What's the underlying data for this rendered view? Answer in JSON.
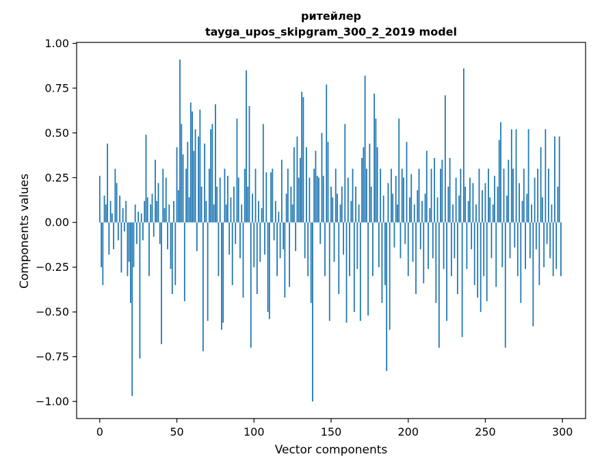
{
  "figure": {
    "title_line1": "ритейлер",
    "title_line2": "tayga_upos_skipgram_300_2_2019 model"
  },
  "chart_data": {
    "type": "bar",
    "title": "ритейлер",
    "subtitle": "tayga_upos_skipgram_300_2_2019 model",
    "xlabel": "Vector components",
    "ylabel": "Components values",
    "bar_color": "#1f77b4",
    "axis_color": "#000000",
    "xlim": [
      -15,
      315
    ],
    "ylim": [
      -1.0955,
      1.0055
    ],
    "grid": false,
    "legend": "none",
    "x_ticks": [
      {
        "value": 0,
        "label": "0"
      },
      {
        "value": 50,
        "label": "50"
      },
      {
        "value": 100,
        "label": "100"
      },
      {
        "value": 150,
        "label": "150"
      },
      {
        "value": 200,
        "label": "200"
      },
      {
        "value": 250,
        "label": "250"
      },
      {
        "value": 300,
        "label": "300"
      }
    ],
    "y_ticks": [
      {
        "value": 1.0,
        "label": "1.00"
      },
      {
        "value": 0.75,
        "label": "0.75"
      },
      {
        "value": 0.5,
        "label": "0.50"
      },
      {
        "value": 0.25,
        "label": "0.25"
      },
      {
        "value": 0.0,
        "label": "0.00"
      },
      {
        "value": -0.25,
        "label": "−0.25"
      },
      {
        "value": -0.5,
        "label": "−0.50"
      },
      {
        "value": -0.75,
        "label": "−0.75"
      },
      {
        "value": -1.0,
        "label": "−1.00"
      }
    ],
    "x_start": 0,
    "values": [
      0.26,
      -0.25,
      -0.35,
      0.15,
      0.1,
      0.44,
      -0.18,
      0.12,
      0.05,
      -0.15,
      0.3,
      0.22,
      -0.1,
      0.15,
      -0.28,
      0.08,
      -0.05,
      0.12,
      -0.3,
      -0.22,
      -0.45,
      -0.97,
      -0.25,
      0.1,
      -0.12,
      0.06,
      -0.76,
      0.05,
      -0.1,
      0.12,
      0.49,
      0.14,
      -0.3,
      0.1,
      0.16,
      -0.08,
      0.35,
      0.12,
      0.22,
      -0.12,
      -0.68,
      0.3,
      0.08,
      0.25,
      -0.15,
      0.1,
      -0.26,
      -0.4,
      0.12,
      -0.35,
      0.42,
      0.18,
      0.91,
      0.55,
      0.38,
      -0.44,
      0.3,
      0.45,
      0.14,
      0.67,
      0.62,
      0.4,
      0.52,
      -0.16,
      0.48,
      0.63,
      0.2,
      -0.72,
      0.44,
      0.12,
      -0.55,
      0.3,
      0.52,
      0.55,
      0.1,
      0.66,
      0.2,
      -0.3,
      0.25,
      -0.6,
      -0.56,
      0.3,
      0.1,
      0.26,
      -0.18,
      0.14,
      -0.35,
      0.2,
      -0.12,
      0.58,
      0.25,
      -0.2,
      0.1,
      -0.42,
      0.3,
      0.85,
      0.2,
      0.65,
      -0.7,
      0.16,
      -0.25,
      0.3,
      -0.4,
      0.12,
      -0.22,
      0.08,
      0.55,
      -0.18,
      0.28,
      -0.5,
      -0.54,
      0.28,
      0.3,
      -0.1,
      0.12,
      -0.3,
      0.06,
      -0.2,
      0.35,
      -0.15,
      -0.42,
      0.16,
      0.3,
      -0.36,
      0.2,
      0.1,
      0.42,
      -0.16,
      0.48,
      0.25,
      0.36,
      0.73,
      0.7,
      -0.2,
      0.42,
      -0.3,
      0.25,
      -0.45,
      -1.0,
      0.3,
      0.4,
      0.26,
      0.25,
      -0.12,
      0.5,
      0.26,
      -0.3,
      0.77,
      0.45,
      -0.55,
      0.2,
      0.14,
      -0.22,
      0.3,
      0.16,
      -0.4,
      0.1,
      0.2,
      -0.18,
      0.55,
      -0.56,
      0.25,
      -0.3,
      0.12,
      0.3,
      -0.5,
      0.2,
      -0.26,
      0.1,
      -0.55,
      0.36,
      0.42,
      0.82,
      0.3,
      -0.52,
      0.44,
      0.2,
      -0.3,
      0.72,
      0.58,
      0.42,
      -0.25,
      0.3,
      -0.45,
      0.15,
      -0.35,
      -0.83,
      0.22,
      -0.6,
      0.3,
      0.16,
      -0.14,
      0.26,
      0.1,
      0.58,
      -0.2,
      0.3,
      0.25,
      -0.12,
      0.45,
      -0.3,
      0.14,
      0.27,
      -0.22,
      0.1,
      -0.4,
      0.18,
      0.3,
      -0.15,
      0.12,
      -0.34,
      0.16,
      0.4,
      -0.26,
      0.08,
      0.3,
      -0.2,
      0.36,
      -0.45,
      0.14,
      -0.7,
      0.3,
      0.35,
      -0.26,
      0.71,
      -0.55,
      0.2,
      0.36,
      -0.3,
      0.1,
      -0.2,
      0.25,
      -0.4,
      0.15,
      0.3,
      -0.64,
      0.86,
      0.2,
      -0.26,
      0.12,
      0.25,
      -0.15,
      0.22,
      -0.35,
      0.1,
      -0.42,
      0.3,
      -0.5,
      0.18,
      -0.3,
      0.22,
      -0.44,
      0.3,
      0.14,
      -0.2,
      0.1,
      0.26,
      -0.36,
      0.2,
      0.46,
      0.56,
      -0.25,
      0.3,
      -0.7,
      0.15,
      0.35,
      -0.2,
      0.52,
      0.3,
      -0.14,
      0.52,
      -0.3,
      0.22,
      -0.45,
      0.12,
      0.3,
      -0.26,
      0.16,
      0.52,
      -0.2,
      0.1,
      -0.58,
      0.25,
      -0.15,
      0.3,
      -0.35,
      0.42,
      0.14,
      -0.25,
      0.52,
      -0.12,
      0.3,
      -0.2,
      0.1,
      -0.3,
      0.48,
      -0.26,
      0.2,
      0.48,
      -0.3
    ]
  }
}
